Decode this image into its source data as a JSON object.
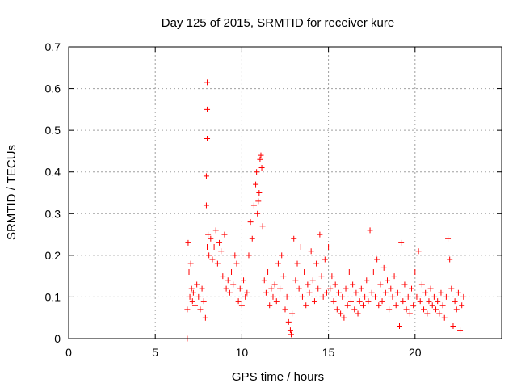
{
  "chart_data": {
    "type": "scatter",
    "title": "Day 125 of 2015, SRMTID for receiver kure",
    "xlabel": "GPS time / hours",
    "ylabel": "SRMTID / TECUs",
    "xlim": [
      0,
      25
    ],
    "ylim": [
      0,
      0.7
    ],
    "xticks": [
      0,
      5,
      10,
      15,
      20
    ],
    "xtick_labels": [
      "0",
      "5",
      "10",
      "15",
      "20"
    ],
    "yticks": [
      0,
      0.1,
      0.2,
      0.3,
      0.4,
      0.5,
      0.6,
      0.7
    ],
    "ytick_labels": [
      "0",
      "0.1",
      "0.2",
      "0.3",
      "0.4",
      "0.5",
      "0.6",
      "0.7"
    ],
    "grid": true,
    "marker": "+",
    "color": "#ff0000",
    "series": [
      {
        "name": "SRMTID",
        "x": [
          6.85,
          6.85,
          6.9,
          6.95,
          7.0,
          7.05,
          7.1,
          7.15,
          7.2,
          7.3,
          7.4,
          7.5,
          7.6,
          7.7,
          7.8,
          7.9,
          7.95,
          7.95,
          8.0,
          8.0,
          8.0,
          8.0,
          8.05,
          8.1,
          8.2,
          8.3,
          8.4,
          8.5,
          8.6,
          8.7,
          8.8,
          8.9,
          9.0,
          9.1,
          9.2,
          9.3,
          9.4,
          9.5,
          9.6,
          9.7,
          9.8,
          9.9,
          10.0,
          10.1,
          10.2,
          10.3,
          10.4,
          10.5,
          10.6,
          10.7,
          10.8,
          10.85,
          10.9,
          10.95,
          11.0,
          11.05,
          11.1,
          11.15,
          11.2,
          11.3,
          11.4,
          11.5,
          11.6,
          11.7,
          11.8,
          11.9,
          12.0,
          12.1,
          12.2,
          12.3,
          12.4,
          12.5,
          12.6,
          12.7,
          12.8,
          12.85,
          12.9,
          13.0,
          13.1,
          13.2,
          13.3,
          13.4,
          13.5,
          13.6,
          13.7,
          13.8,
          13.9,
          14.0,
          14.1,
          14.2,
          14.3,
          14.4,
          14.5,
          14.6,
          14.7,
          14.8,
          14.9,
          15.0,
          15.1,
          15.2,
          15.3,
          15.4,
          15.5,
          15.6,
          15.7,
          15.8,
          15.9,
          16.0,
          16.1,
          16.2,
          16.3,
          16.4,
          16.5,
          16.6,
          16.7,
          16.8,
          16.9,
          17.0,
          17.1,
          17.2,
          17.3,
          17.4,
          17.5,
          17.6,
          17.7,
          17.8,
          17.9,
          18.0,
          18.1,
          18.2,
          18.3,
          18.4,
          18.5,
          18.6,
          18.7,
          18.8,
          18.9,
          19.0,
          19.1,
          19.2,
          19.3,
          19.4,
          19.5,
          19.6,
          19.7,
          19.8,
          19.9,
          20.0,
          20.1,
          20.2,
          20.3,
          20.4,
          20.5,
          20.6,
          20.7,
          20.8,
          20.9,
          21.0,
          21.1,
          21.2,
          21.3,
          21.4,
          21.5,
          21.6,
          21.7,
          21.8,
          21.9,
          22.0,
          22.1,
          22.2,
          22.3,
          22.4,
          22.5,
          22.6,
          22.7,
          22.8
        ],
        "y": [
          0.0,
          0.07,
          0.23,
          0.16,
          0.1,
          0.18,
          0.12,
          0.09,
          0.11,
          0.08,
          0.13,
          0.1,
          0.07,
          0.12,
          0.09,
          0.05,
          0.32,
          0.39,
          0.48,
          0.55,
          0.615,
          0.22,
          0.25,
          0.2,
          0.24,
          0.19,
          0.22,
          0.26,
          0.18,
          0.23,
          0.21,
          0.15,
          0.25,
          0.12,
          0.14,
          0.11,
          0.16,
          0.13,
          0.2,
          0.18,
          0.09,
          0.12,
          0.08,
          0.14,
          0.1,
          0.11,
          0.2,
          0.28,
          0.24,
          0.32,
          0.37,
          0.4,
          0.3,
          0.33,
          0.35,
          0.43,
          0.44,
          0.41,
          0.27,
          0.14,
          0.11,
          0.16,
          0.08,
          0.12,
          0.1,
          0.13,
          0.09,
          0.18,
          0.12,
          0.2,
          0.15,
          0.07,
          0.1,
          0.04,
          0.02,
          0.01,
          0.06,
          0.24,
          0.14,
          0.18,
          0.12,
          0.22,
          0.1,
          0.16,
          0.08,
          0.13,
          0.11,
          0.21,
          0.14,
          0.09,
          0.18,
          0.12,
          0.25,
          0.15,
          0.1,
          0.19,
          0.11,
          0.22,
          0.12,
          0.15,
          0.09,
          0.13,
          0.07,
          0.11,
          0.06,
          0.1,
          0.05,
          0.12,
          0.08,
          0.16,
          0.09,
          0.13,
          0.07,
          0.11,
          0.06,
          0.09,
          0.12,
          0.08,
          0.1,
          0.14,
          0.09,
          0.26,
          0.11,
          0.16,
          0.1,
          0.19,
          0.08,
          0.13,
          0.09,
          0.17,
          0.11,
          0.14,
          0.07,
          0.12,
          0.1,
          0.15,
          0.08,
          0.11,
          0.03,
          0.23,
          0.09,
          0.13,
          0.07,
          0.1,
          0.06,
          0.12,
          0.08,
          0.16,
          0.1,
          0.21,
          0.09,
          0.13,
          0.07,
          0.11,
          0.06,
          0.09,
          0.12,
          0.08,
          0.1,
          0.07,
          0.09,
          0.06,
          0.11,
          0.08,
          0.05,
          0.1,
          0.24,
          0.19,
          0.12,
          0.03,
          0.09,
          0.07,
          0.11,
          0.02,
          0.08,
          0.1
        ]
      }
    ]
  }
}
